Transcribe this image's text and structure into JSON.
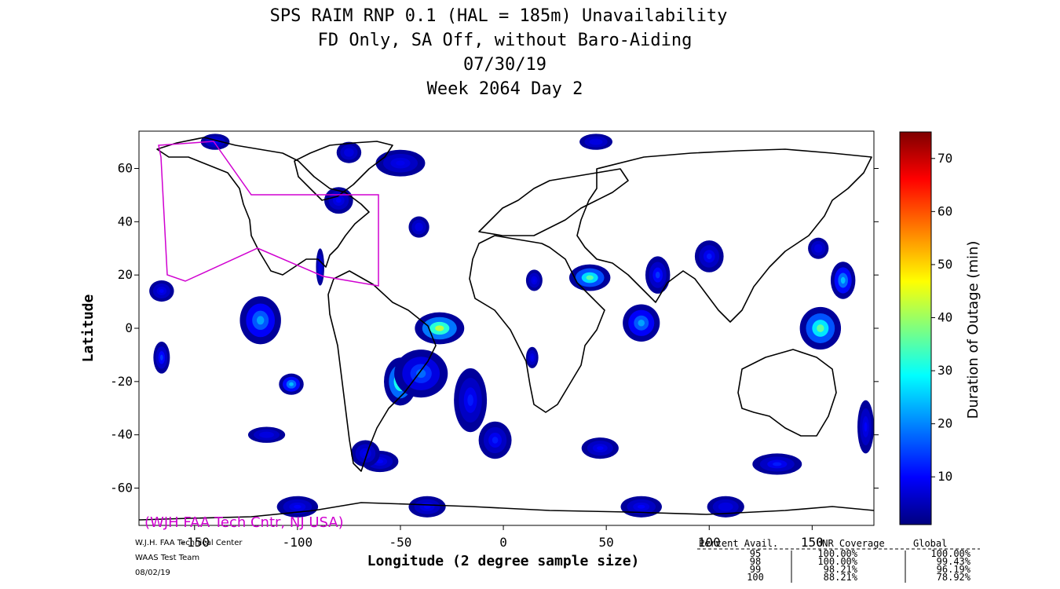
{
  "chart_data": {
    "type": "heatmap",
    "title_lines": [
      "SPS RAIM RNP 0.1 (HAL = 185m) Unavailability",
      "FD Only, SA Off, without Baro-Aiding",
      "07/30/19",
      "Week 2064 Day 2"
    ],
    "xlabel": "Longitude (2 degree sample size)",
    "ylabel": "Latitude",
    "xlim": [
      -177,
      180
    ],
    "ylim": [
      -74,
      74
    ],
    "x_ticks": [
      -150,
      -100,
      -50,
      0,
      50,
      100,
      150
    ],
    "x_tick_labels": [
      "-150",
      "-100",
      "-50",
      "0",
      "50",
      "100",
      "150"
    ],
    "y_ticks": [
      60,
      40,
      20,
      0,
      -20,
      -40,
      -60
    ],
    "y_tick_labels": [
      "60",
      "40",
      "20",
      "0",
      "-20",
      "-40",
      "-60"
    ],
    "colorbar": {
      "label": "Duration of Outage (min)",
      "range": [
        1,
        75
      ],
      "ticks": [
        10,
        20,
        30,
        40,
        50,
        60,
        70
      ],
      "tick_labels": [
        "10",
        "20",
        "30",
        "40",
        "50",
        "60",
        "70"
      ],
      "colors": [
        "#00007f",
        "#0000ff",
        "#007fff",
        "#00ffff",
        "#7fff7f",
        "#ffff00",
        "#ff7f00",
        "#ff0000",
        "#7f0000"
      ]
    },
    "outage_regions": [
      {
        "lon": -75,
        "lat": 66,
        "rlon": 6,
        "rlat": 4,
        "peak": 8
      },
      {
        "lon": -118,
        "lat": 3,
        "rlon": 10,
        "rlat": 9,
        "peak": 22
      },
      {
        "lon": -103,
        "lat": -21,
        "rlon": 6,
        "rlat": 4,
        "peak": 24
      },
      {
        "lon": -166,
        "lat": -11,
        "rlon": 4,
        "rlat": 6,
        "peak": 14
      },
      {
        "lon": -166,
        "lat": 14,
        "rlon": 6,
        "rlat": 4,
        "peak": 10
      },
      {
        "lon": -50,
        "lat": -20,
        "rlon": 8,
        "rlat": 9,
        "peak": 40
      },
      {
        "lon": -31,
        "lat": 0,
        "rlon": 12,
        "rlat": 6,
        "peak": 42
      },
      {
        "lon": -40,
        "lat": -17,
        "rlon": 13,
        "rlat": 9,
        "peak": 18
      },
      {
        "lon": -16,
        "lat": -27,
        "rlon": 8,
        "rlat": 12,
        "peak": 12
      },
      {
        "lon": -4,
        "lat": -42,
        "rlon": 8,
        "rlat": 7,
        "peak": 12
      },
      {
        "lon": 42,
        "lat": 19,
        "rlon": 10,
        "rlat": 5,
        "peak": 35
      },
      {
        "lon": 67,
        "lat": 2,
        "rlon": 9,
        "rlat": 7,
        "peak": 22
      },
      {
        "lon": 75,
        "lat": 20,
        "rlon": 6,
        "rlat": 7,
        "peak": 14
      },
      {
        "lon": 100,
        "lat": 27,
        "rlon": 7,
        "rlat": 6,
        "peak": 12
      },
      {
        "lon": 154,
        "lat": 0,
        "rlon": 10,
        "rlat": 8,
        "peak": 36
      },
      {
        "lon": 165,
        "lat": 18,
        "rlon": 6,
        "rlat": 7,
        "peak": 24
      },
      {
        "lon": 133,
        "lat": -51,
        "rlon": 12,
        "rlat": 4,
        "peak": 12
      },
      {
        "lon": 67,
        "lat": -67,
        "rlon": 10,
        "rlat": 4,
        "peak": 10
      },
      {
        "lon": -100,
        "lat": -67,
        "rlon": 10,
        "rlat": 4,
        "peak": 10
      },
      {
        "lon": -37,
        "lat": -67,
        "rlon": 9,
        "rlat": 4,
        "peak": 10
      },
      {
        "lon": 108,
        "lat": -67,
        "rlon": 9,
        "rlat": 4,
        "peak": 8
      },
      {
        "lon": -60,
        "lat": -50,
        "rlon": 9,
        "rlat": 4,
        "peak": 10
      },
      {
        "lon": -115,
        "lat": -40,
        "rlon": 9,
        "rlat": 3,
        "peak": 8
      },
      {
        "lon": 47,
        "lat": -45,
        "rlon": 9,
        "rlat": 4,
        "peak": 10
      },
      {
        "lon": -80,
        "lat": 48,
        "rlon": 7,
        "rlat": 5,
        "peak": 10
      },
      {
        "lon": -140,
        "lat": 70,
        "rlon": 7,
        "rlat": 3,
        "peak": 10
      },
      {
        "lon": 45,
        "lat": 70,
        "rlon": 8,
        "rlat": 3,
        "peak": 8
      },
      {
        "lon": -89,
        "lat": 23,
        "rlon": 2,
        "rlat": 7,
        "peak": 8
      },
      {
        "lon": -67,
        "lat": -47,
        "rlon": 7,
        "rlat": 5,
        "peak": 9
      },
      {
        "lon": 15,
        "lat": 18,
        "rlon": 4,
        "rlat": 4,
        "peak": 9
      },
      {
        "lon": 153,
        "lat": 30,
        "rlon": 5,
        "rlat": 4,
        "peak": 8
      },
      {
        "lon": 176,
        "lat": -37,
        "rlon": 4,
        "rlat": 10,
        "peak": 10
      },
      {
        "lon": -50,
        "lat": 62,
        "rlon": 12,
        "rlat": 5,
        "peak": 9
      },
      {
        "lon": -41,
        "lat": 38,
        "rlon": 5,
        "rlat": 4,
        "peak": 8
      },
      {
        "lon": 14,
        "lat": -11,
        "rlon": 3,
        "rlat": 4,
        "peak": 9
      }
    ]
  },
  "watermark": "(WJH FAA Tech Cntr, NJ USA)",
  "footer_left": [
    "W.J.H. FAA Technical Center",
    "WAAS Test Team",
    "08/02/19"
  ],
  "stats_table": {
    "headers": [
      "Percent Avail.",
      "UNR Coverage",
      "Global"
    ],
    "rows": [
      [
        "95",
        "100.00%",
        "100.00%"
      ],
      [
        "98",
        "100.00%",
        "99.43%"
      ],
      [
        "99",
        "98.21%",
        "96.19%"
      ],
      [
        "100",
        "88.21%",
        "78.92%"
      ]
    ]
  }
}
